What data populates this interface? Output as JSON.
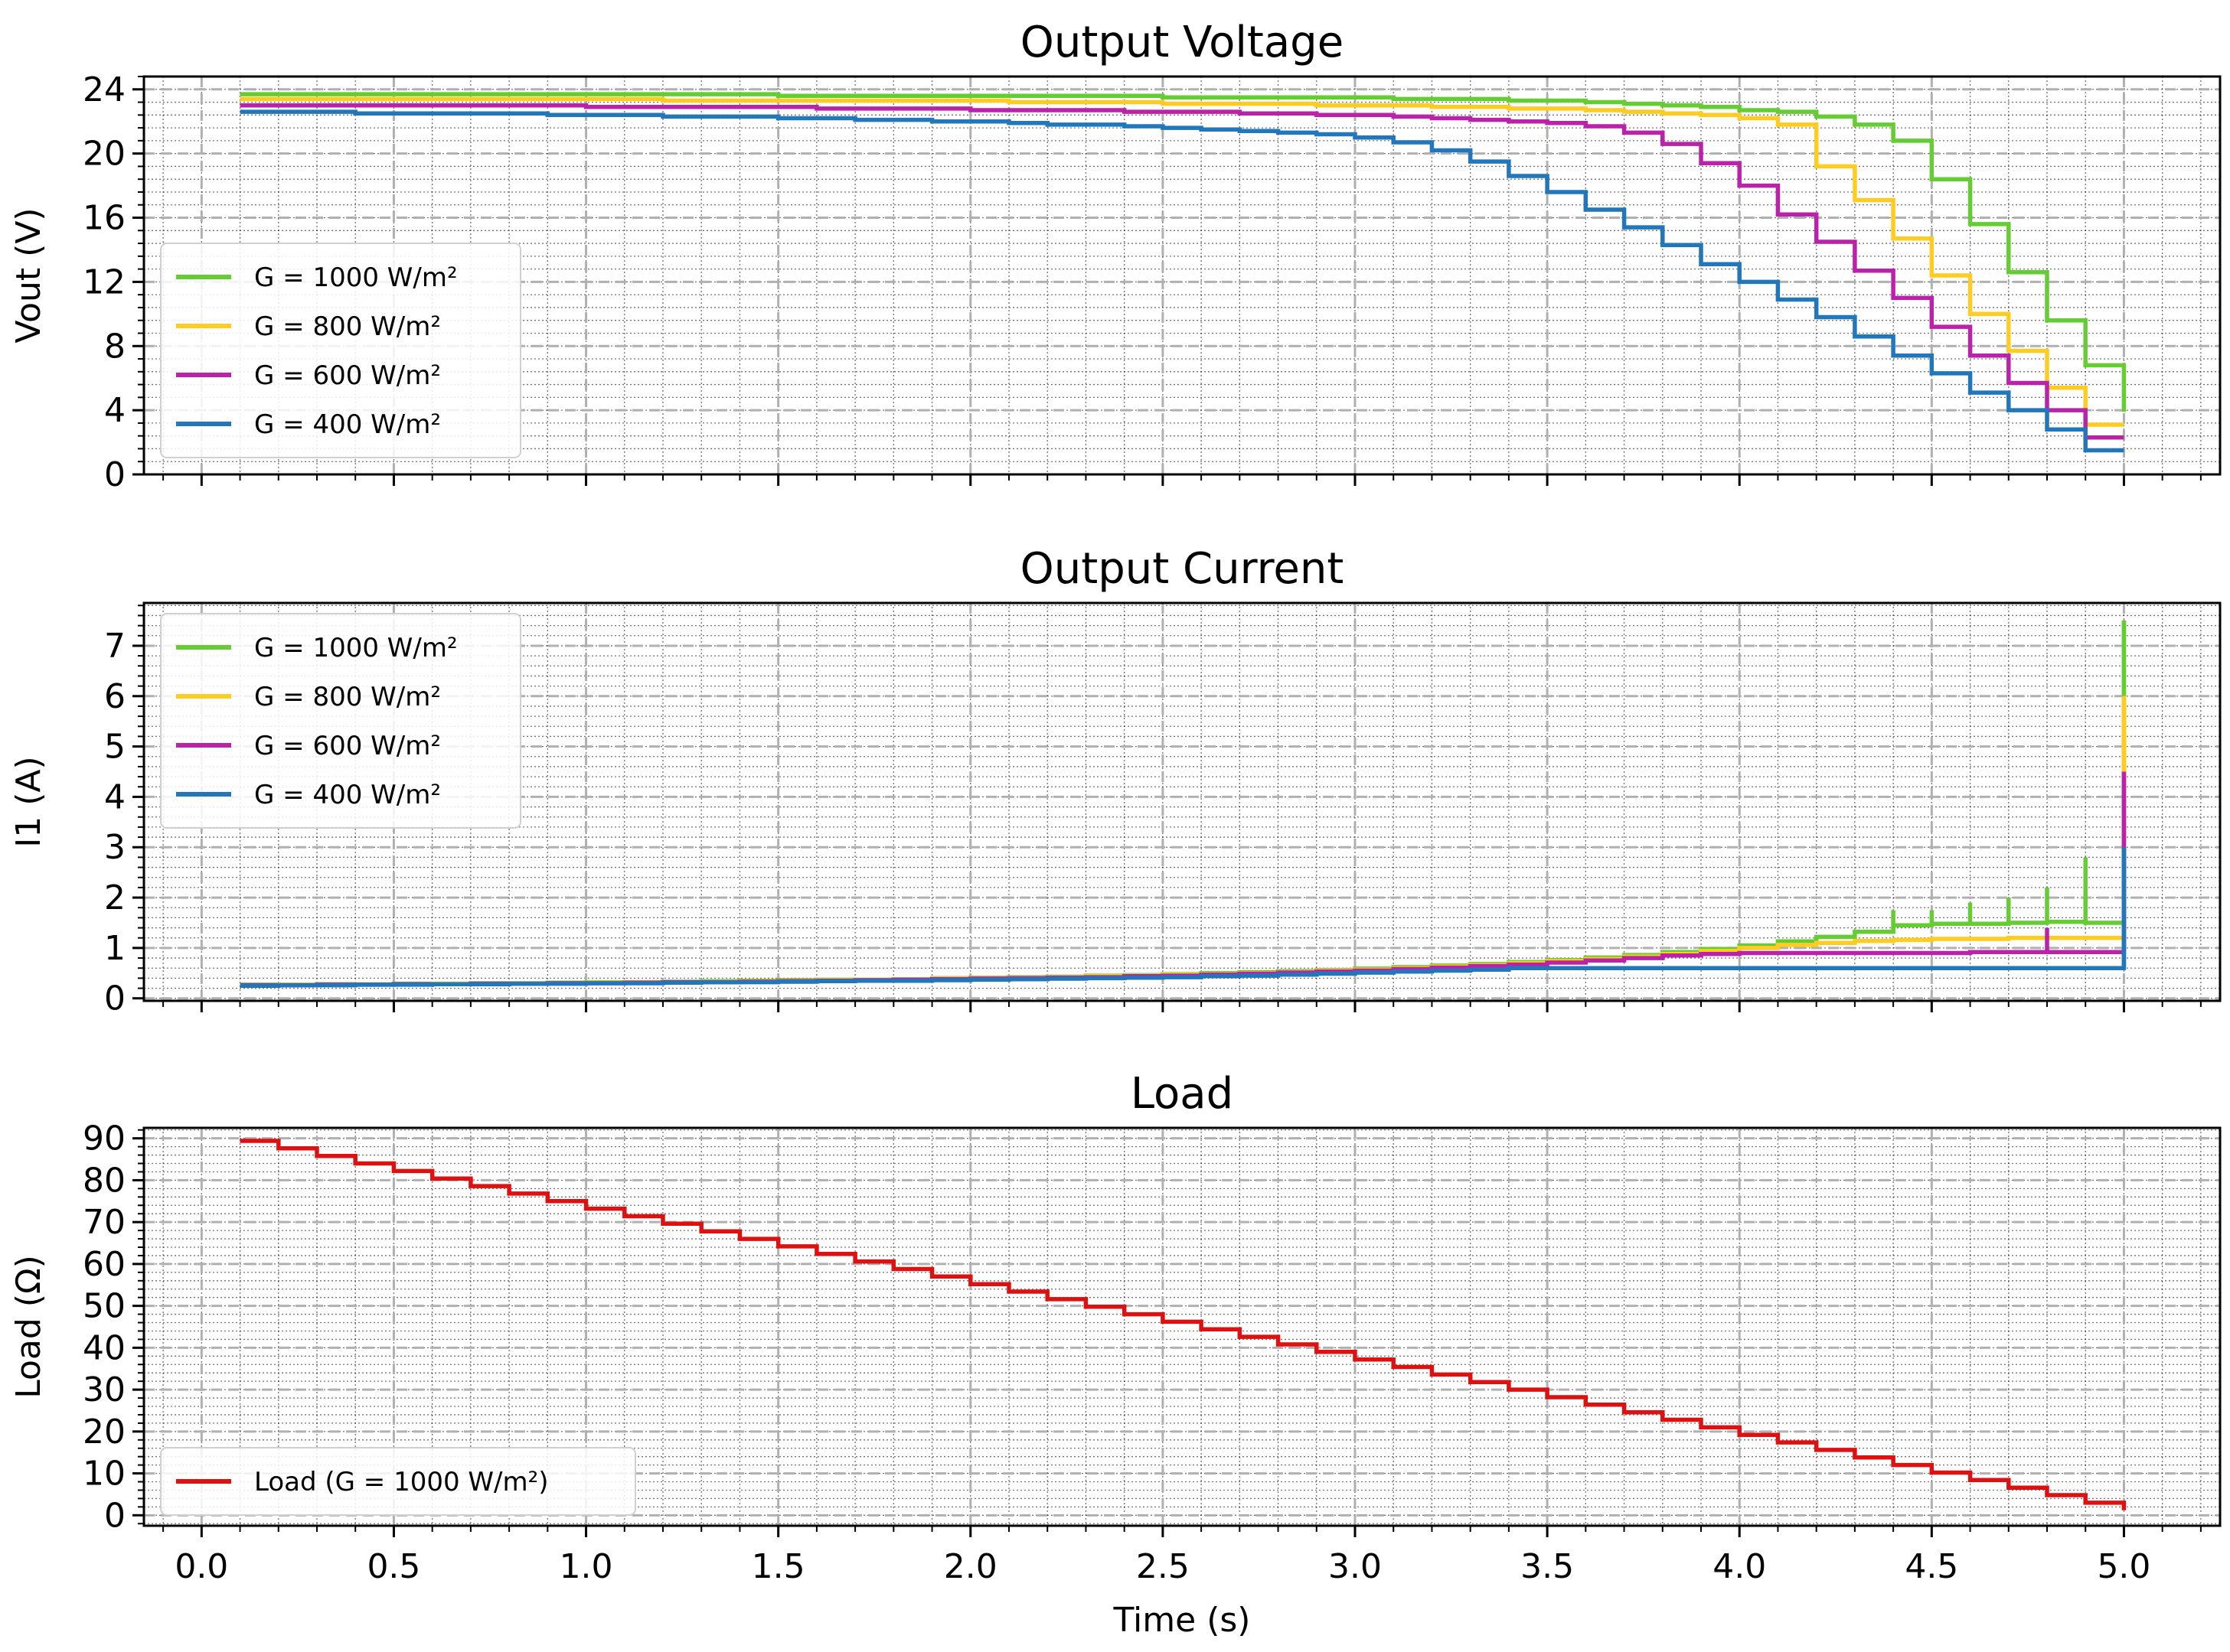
{
  "chart_data": [
    {
      "type": "line",
      "title": "Output Voltage",
      "ylabel": "Vout (V)",
      "xlim": [
        -0.15,
        5.25
      ],
      "ylim": [
        0,
        24.8
      ],
      "yticks": [
        0,
        4,
        8,
        12,
        16,
        20,
        24
      ],
      "grid": true,
      "legend_position": "center-left",
      "x_steps": [
        0.1,
        0.2,
        0.3,
        0.4,
        0.5,
        0.6,
        0.7,
        0.8,
        0.9,
        1.0,
        1.1,
        1.2,
        1.3,
        1.4,
        1.5,
        1.6,
        1.7,
        1.8,
        1.9,
        2.0,
        2.1,
        2.2,
        2.3,
        2.4,
        2.5,
        2.6,
        2.7,
        2.8,
        2.9,
        3.0,
        3.1,
        3.2,
        3.3,
        3.4,
        3.5,
        3.6,
        3.7,
        3.8,
        3.9,
        4.0,
        4.1,
        4.2,
        4.3,
        4.4,
        4.5,
        4.6,
        4.7,
        4.8,
        4.9,
        5.0
      ],
      "series": [
        {
          "name": "G = 1000 W/m²",
          "color": "#66cc33",
          "values": [
            23.7,
            23.7,
            23.7,
            23.7,
            23.7,
            23.7,
            23.7,
            23.7,
            23.7,
            23.7,
            23.7,
            23.7,
            23.7,
            23.7,
            23.6,
            23.6,
            23.6,
            23.6,
            23.6,
            23.6,
            23.6,
            23.6,
            23.6,
            23.6,
            23.5,
            23.5,
            23.5,
            23.5,
            23.5,
            23.5,
            23.4,
            23.4,
            23.4,
            23.3,
            23.3,
            23.2,
            23.1,
            23.0,
            22.9,
            22.7,
            22.6,
            22.3,
            21.8,
            20.8,
            18.4,
            15.6,
            12.6,
            9.6,
            6.8,
            3.9
          ]
        },
        {
          "name": "G = 800 W/m²",
          "color": "#ffcc22",
          "values": [
            23.4,
            23.4,
            23.4,
            23.4,
            23.4,
            23.4,
            23.4,
            23.4,
            23.4,
            23.4,
            23.4,
            23.3,
            23.3,
            23.3,
            23.3,
            23.3,
            23.3,
            23.3,
            23.3,
            23.3,
            23.2,
            23.2,
            23.2,
            23.2,
            23.1,
            23.1,
            23.1,
            23.1,
            23.0,
            23.0,
            23.0,
            22.9,
            22.9,
            22.8,
            22.8,
            22.7,
            22.6,
            22.5,
            22.4,
            22.2,
            21.8,
            19.2,
            17.1,
            14.7,
            12.4,
            10.0,
            7.7,
            5.4,
            3.1,
            3.1
          ]
        },
        {
          "name": "G = 600 W/m²",
          "color": "#bb22aa",
          "values": [
            23.0,
            23.0,
            23.0,
            23.0,
            23.0,
            23.0,
            23.0,
            23.0,
            23.0,
            22.9,
            22.9,
            22.9,
            22.9,
            22.9,
            22.9,
            22.8,
            22.8,
            22.8,
            22.8,
            22.7,
            22.7,
            22.7,
            22.7,
            22.6,
            22.6,
            22.6,
            22.5,
            22.5,
            22.4,
            22.4,
            22.3,
            22.2,
            22.1,
            22.0,
            21.9,
            21.7,
            21.3,
            20.6,
            19.4,
            18.0,
            16.2,
            14.5,
            12.7,
            11.0,
            9.2,
            7.4,
            5.7,
            4.0,
            2.3,
            2.3
          ]
        },
        {
          "name": "G = 400 W/m²",
          "color": "#2277bb",
          "values": [
            22.6,
            22.6,
            22.6,
            22.5,
            22.5,
            22.5,
            22.5,
            22.5,
            22.4,
            22.4,
            22.4,
            22.3,
            22.3,
            22.3,
            22.2,
            22.2,
            22.1,
            22.1,
            22.0,
            22.0,
            21.9,
            21.8,
            21.8,
            21.7,
            21.6,
            21.5,
            21.4,
            21.3,
            21.2,
            21.0,
            20.7,
            20.2,
            19.5,
            18.6,
            17.6,
            16.5,
            15.4,
            14.3,
            13.1,
            12.0,
            10.9,
            9.8,
            8.6,
            7.4,
            6.3,
            5.1,
            4.0,
            2.8,
            1.5,
            1.5
          ]
        }
      ]
    },
    {
      "type": "line",
      "title": "Output Current",
      "ylabel": "I1 (A)",
      "xlim": [
        -0.15,
        5.25
      ],
      "ylim": [
        -0.05,
        7.85
      ],
      "yticks": [
        0,
        1,
        2,
        3,
        4,
        5,
        6,
        7
      ],
      "grid": true,
      "legend_position": "top-left",
      "x_steps": [
        0.1,
        0.2,
        0.3,
        0.4,
        0.5,
        0.6,
        0.7,
        0.8,
        0.9,
        1.0,
        1.1,
        1.2,
        1.3,
        1.4,
        1.5,
        1.6,
        1.7,
        1.8,
        1.9,
        2.0,
        2.1,
        2.2,
        2.3,
        2.4,
        2.5,
        2.6,
        2.7,
        2.8,
        2.9,
        3.0,
        3.1,
        3.2,
        3.3,
        3.4,
        3.5,
        3.6,
        3.7,
        3.8,
        3.9,
        4.0,
        4.1,
        4.2,
        4.3,
        4.4,
        4.5,
        4.6,
        4.7,
        4.8,
        4.9,
        5.0
      ],
      "series": [
        {
          "name": "G = 1000 W/m²",
          "color": "#66cc33",
          "values": [
            0.27,
            0.27,
            0.28,
            0.28,
            0.29,
            0.29,
            0.3,
            0.3,
            0.31,
            0.32,
            0.32,
            0.33,
            0.34,
            0.35,
            0.36,
            0.37,
            0.37,
            0.38,
            0.4,
            0.41,
            0.42,
            0.43,
            0.45,
            0.46,
            0.48,
            0.5,
            0.52,
            0.54,
            0.56,
            0.59,
            0.62,
            0.65,
            0.68,
            0.72,
            0.76,
            0.81,
            0.86,
            0.92,
            0.98,
            1.05,
            1.13,
            1.22,
            1.32,
            1.45,
            1.48,
            1.48,
            1.5,
            1.52,
            1.5,
            7.5
          ],
          "spike_tops": [
            null,
            null,
            null,
            null,
            null,
            null,
            null,
            null,
            null,
            null,
            null,
            null,
            null,
            null,
            null,
            null,
            null,
            null,
            null,
            null,
            null,
            null,
            null,
            null,
            null,
            null,
            null,
            null,
            null,
            null,
            null,
            null,
            null,
            null,
            null,
            null,
            null,
            null,
            null,
            null,
            null,
            null,
            null,
            1.75,
            1.75,
            1.9,
            2.0,
            2.2,
            2.8,
            7.5
          ]
        },
        {
          "name": "G = 800 W/m²",
          "color": "#ffcc22",
          "values": [
            0.26,
            0.27,
            0.27,
            0.28,
            0.28,
            0.29,
            0.29,
            0.3,
            0.3,
            0.31,
            0.32,
            0.32,
            0.33,
            0.34,
            0.35,
            0.36,
            0.37,
            0.38,
            0.39,
            0.4,
            0.41,
            0.42,
            0.44,
            0.45,
            0.47,
            0.48,
            0.5,
            0.52,
            0.55,
            0.57,
            0.6,
            0.63,
            0.66,
            0.7,
            0.74,
            0.78,
            0.83,
            0.88,
            0.94,
            1.0,
            1.06,
            1.1,
            1.14,
            1.16,
            1.18,
            1.18,
            1.2,
            1.2,
            1.2,
            6.0
          ],
          "spike_tops": [
            null,
            null,
            null,
            null,
            null,
            null,
            null,
            null,
            null,
            null,
            null,
            null,
            null,
            null,
            null,
            null,
            null,
            null,
            null,
            null,
            null,
            null,
            null,
            null,
            null,
            null,
            null,
            null,
            null,
            null,
            null,
            null,
            null,
            null,
            null,
            null,
            null,
            null,
            null,
            null,
            null,
            null,
            null,
            null,
            null,
            null,
            null,
            null,
            null,
            6.0
          ]
        },
        {
          "name": "G = 600 W/m²",
          "color": "#bb22aa",
          "values": [
            0.26,
            0.26,
            0.27,
            0.27,
            0.28,
            0.28,
            0.29,
            0.29,
            0.3,
            0.3,
            0.31,
            0.32,
            0.32,
            0.33,
            0.34,
            0.35,
            0.36,
            0.37,
            0.38,
            0.39,
            0.4,
            0.41,
            0.42,
            0.44,
            0.45,
            0.47,
            0.49,
            0.51,
            0.53,
            0.55,
            0.58,
            0.61,
            0.64,
            0.67,
            0.71,
            0.75,
            0.8,
            0.85,
            0.88,
            0.9,
            0.9,
            0.9,
            0.9,
            0.9,
            0.9,
            0.92,
            0.92,
            0.92,
            0.92,
            4.5
          ],
          "spike_tops": [
            null,
            null,
            null,
            null,
            null,
            null,
            null,
            null,
            null,
            null,
            null,
            null,
            null,
            null,
            null,
            null,
            null,
            null,
            null,
            null,
            null,
            null,
            null,
            null,
            null,
            null,
            null,
            null,
            null,
            null,
            null,
            null,
            null,
            null,
            null,
            null,
            null,
            null,
            null,
            null,
            null,
            null,
            null,
            null,
            null,
            null,
            null,
            1.4,
            null,
            4.5
          ]
        },
        {
          "name": "G = 400 W/m²",
          "color": "#2277bb",
          "values": [
            0.25,
            0.26,
            0.26,
            0.27,
            0.27,
            0.28,
            0.28,
            0.29,
            0.29,
            0.3,
            0.3,
            0.31,
            0.32,
            0.32,
            0.33,
            0.34,
            0.35,
            0.35,
            0.36,
            0.37,
            0.38,
            0.39,
            0.4,
            0.41,
            0.42,
            0.44,
            0.45,
            0.47,
            0.49,
            0.51,
            0.53,
            0.55,
            0.57,
            0.6,
            0.6,
            0.6,
            0.6,
            0.6,
            0.6,
            0.6,
            0.6,
            0.6,
            0.6,
            0.6,
            0.6,
            0.6,
            0.6,
            0.6,
            0.6,
            3.0
          ],
          "spike_tops": [
            null,
            null,
            null,
            null,
            null,
            null,
            null,
            null,
            null,
            null,
            null,
            null,
            null,
            null,
            null,
            null,
            null,
            null,
            null,
            null,
            null,
            null,
            null,
            null,
            null,
            null,
            null,
            null,
            null,
            null,
            null,
            null,
            null,
            null,
            null,
            null,
            null,
            null,
            null,
            null,
            null,
            null,
            null,
            null,
            null,
            null,
            null,
            null,
            null,
            3.0
          ]
        }
      ]
    },
    {
      "type": "line",
      "title": "Load",
      "xlabel": "Time (s)",
      "ylabel": "Load (Ω)",
      "xlim": [
        -0.15,
        5.25
      ],
      "ylim": [
        -2.5,
        92.5
      ],
      "yticks": [
        0,
        10,
        20,
        30,
        40,
        50,
        60,
        70,
        80,
        90
      ],
      "xticks": [
        "0.0",
        "0.5",
        "1.0",
        "1.5",
        "2.0",
        "2.5",
        "3.0",
        "3.5",
        "4.0",
        "4.5",
        "5.0"
      ],
      "grid": true,
      "legend_position": "bottom-left",
      "x_steps": [
        0.1,
        0.2,
        0.3,
        0.4,
        0.5,
        0.6,
        0.7,
        0.8,
        0.9,
        1.0,
        1.1,
        1.2,
        1.3,
        1.4,
        1.5,
        1.6,
        1.7,
        1.8,
        1.9,
        2.0,
        2.1,
        2.2,
        2.3,
        2.4,
        2.5,
        2.6,
        2.7,
        2.8,
        2.9,
        3.0,
        3.1,
        3.2,
        3.3,
        3.4,
        3.5,
        3.6,
        3.7,
        3.8,
        3.9,
        4.0,
        4.1,
        4.2,
        4.3,
        4.4,
        4.5,
        4.6,
        4.7,
        4.8,
        4.9,
        5.0
      ],
      "series": [
        {
          "name": "Load (G = 1000 W/m²)",
          "color": "#dd1111",
          "values": [
            89.4,
            87.6,
            85.8,
            84.0,
            82.2,
            80.4,
            78.6,
            76.8,
            75.0,
            73.2,
            71.4,
            69.6,
            67.8,
            66.0,
            64.2,
            62.4,
            60.6,
            58.8,
            57.0,
            55.2,
            53.4,
            51.6,
            49.8,
            48.0,
            46.2,
            44.4,
            42.6,
            40.8,
            39.0,
            37.2,
            35.4,
            33.6,
            31.8,
            30.0,
            28.2,
            26.4,
            24.6,
            22.8,
            21.0,
            19.2,
            17.4,
            15.6,
            13.8,
            12.0,
            10.2,
            8.4,
            6.6,
            4.8,
            3.0,
            1.2
          ]
        }
      ]
    }
  ]
}
